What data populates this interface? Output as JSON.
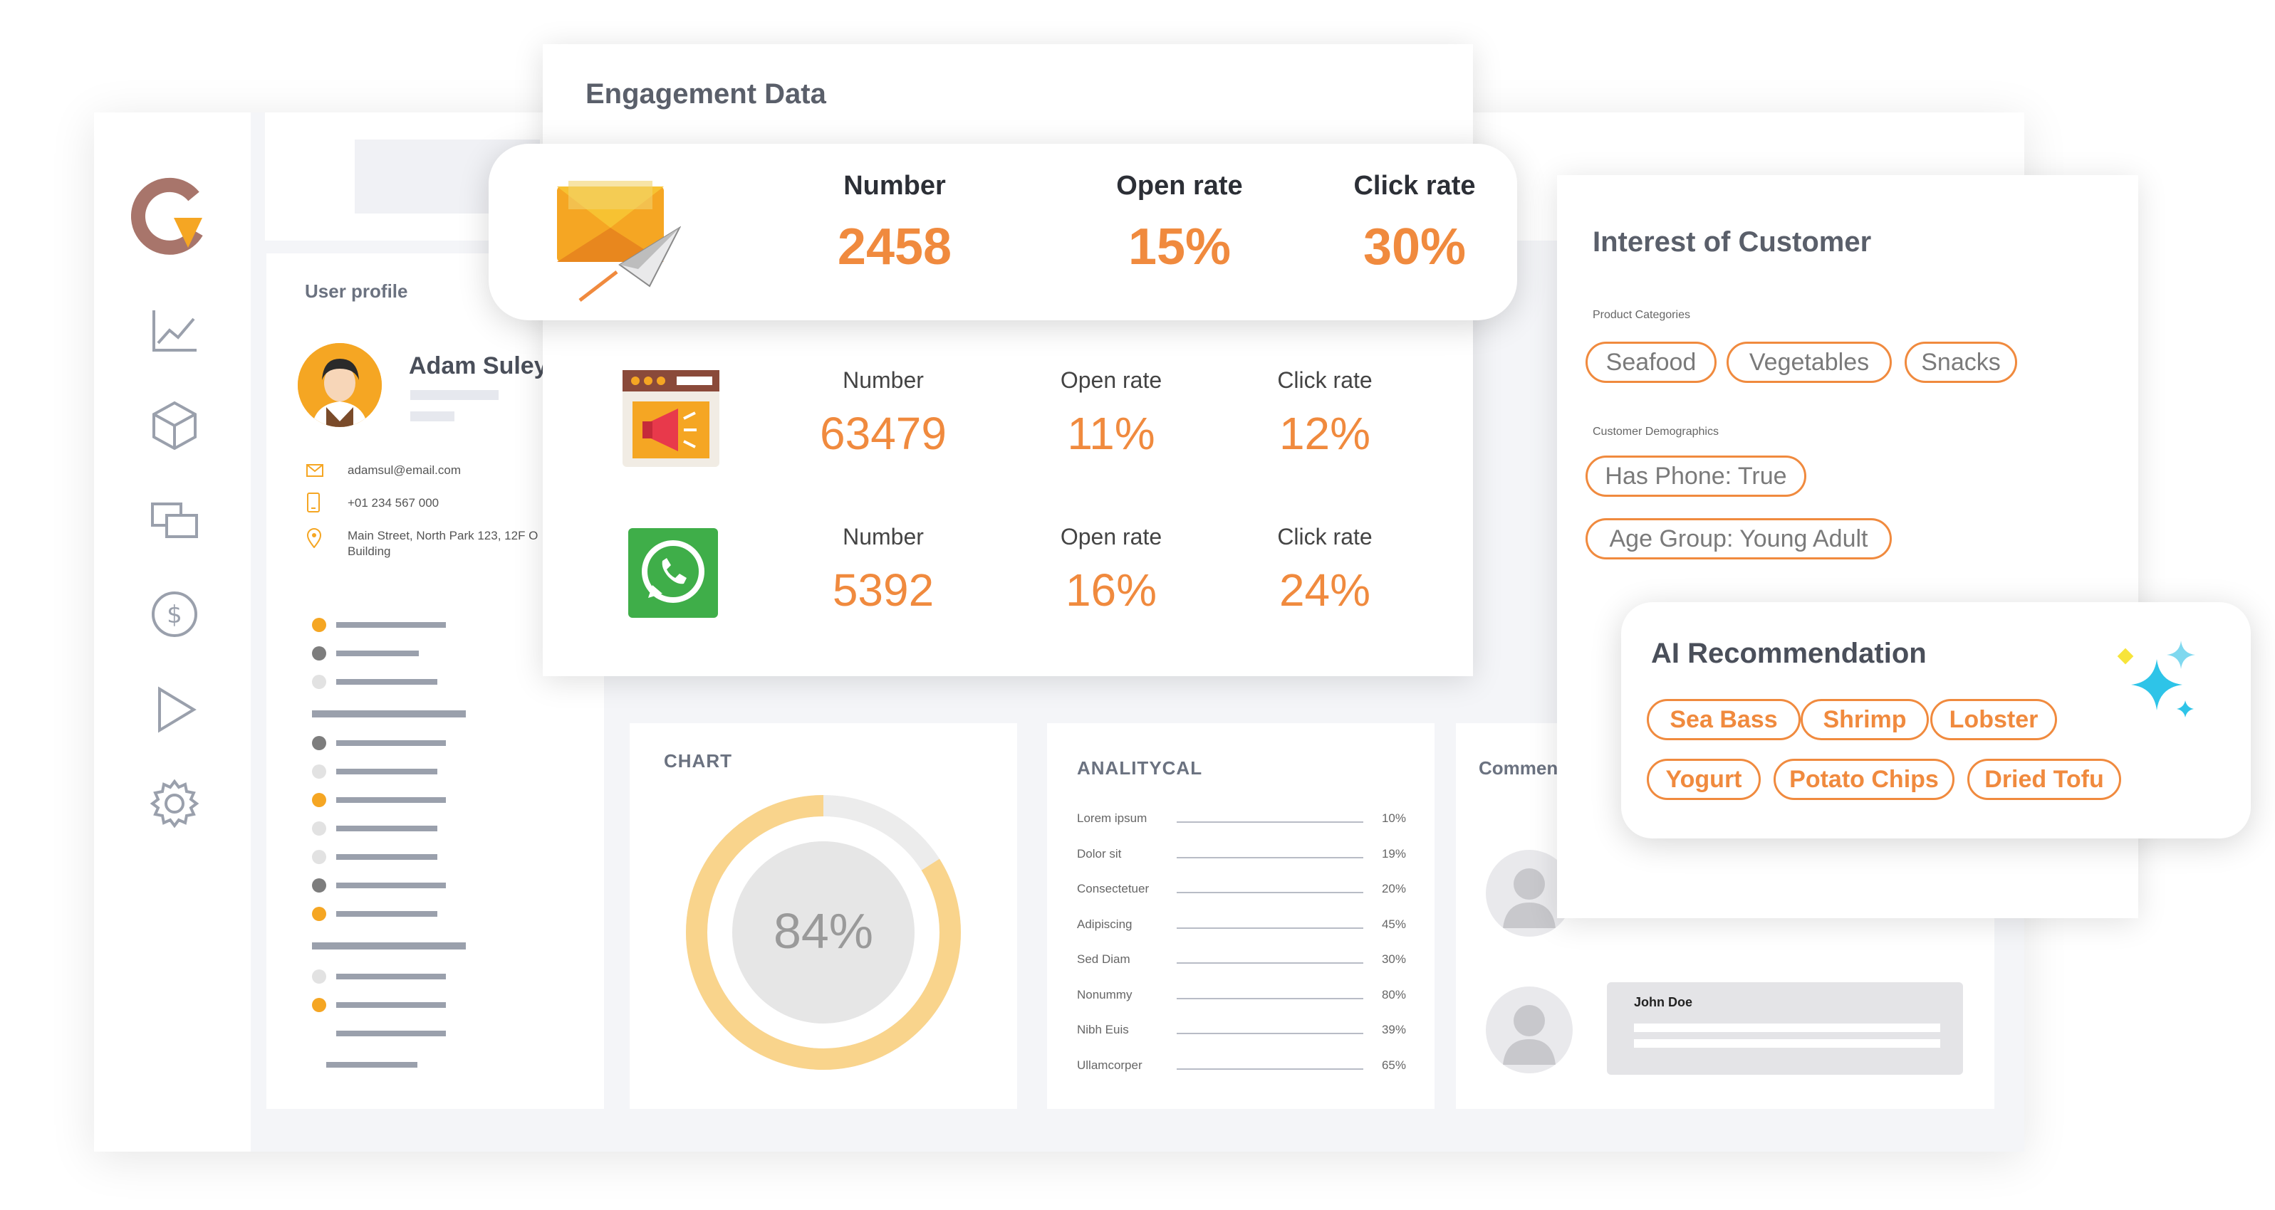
{
  "profile": {
    "title": "User profile",
    "name": "Adam Suley",
    "email": "adamsul@email.com",
    "phone": "+01 234 567 000",
    "address_line1": "Main Street, North Park 123, 12F O",
    "address_line2": "Building"
  },
  "chart": {
    "title": "CHART",
    "percent_label": "84%",
    "value": 84,
    "ring_color": "#f9d48c",
    "track_color": "#ececec"
  },
  "analytical": {
    "title": "ANALITYCAL",
    "rows": [
      {
        "label": "Lorem ipsum",
        "value": "10%"
      },
      {
        "label": "Dolor sit",
        "value": "19%"
      },
      {
        "label": "Consectetuer",
        "value": "20%"
      },
      {
        "label": "Adipiscing",
        "value": "45%"
      },
      {
        "label": "Sed Diam",
        "value": "30%"
      },
      {
        "label": "Nonummy",
        "value": "80%"
      },
      {
        "label": "Nibh Euis",
        "value": "39%"
      },
      {
        "label": "Ullamcorper",
        "value": "65%"
      }
    ]
  },
  "comments": {
    "title": "Comments",
    "author": "John Doe"
  },
  "engagement": {
    "title": "Engagement Data",
    "email": {
      "icon": "email-send-icon",
      "number_label": "Number",
      "number": "2458",
      "open_label": "Open rate",
      "open": "15%",
      "click_label": "Click rate",
      "click": "30%"
    },
    "web": {
      "icon": "web-megaphone-icon",
      "number_label": "Number",
      "number": "63479",
      "open_label": "Open rate",
      "open": "11%",
      "click_label": "Click rate",
      "click": "12%"
    },
    "whatsapp": {
      "icon": "whatsapp-icon",
      "number_label": "Number",
      "number": "5392",
      "open_label": "Open rate",
      "open": "16%",
      "click_label": "Click rate",
      "click": "24%"
    }
  },
  "interest": {
    "title": "Interest of Customer",
    "categories_label": "Product Categories",
    "categories": [
      "Seafood",
      "Vegetables",
      "Snacks"
    ],
    "demographics_label": "Customer Demographics",
    "demographics": [
      "Has Phone: True",
      "Age Group: Young Adult"
    ]
  },
  "ai": {
    "title": "AI Recommendation",
    "items": [
      "Sea Bass",
      "Shrimp",
      "Lobster",
      "Yogurt",
      "Potato Chips",
      "Dried Tofu"
    ],
    "icon": "sparkle-icon"
  },
  "colors": {
    "accent": "#f08a3e",
    "sidebar_icon": "#9aa0ac",
    "logo": "#a8756b"
  }
}
